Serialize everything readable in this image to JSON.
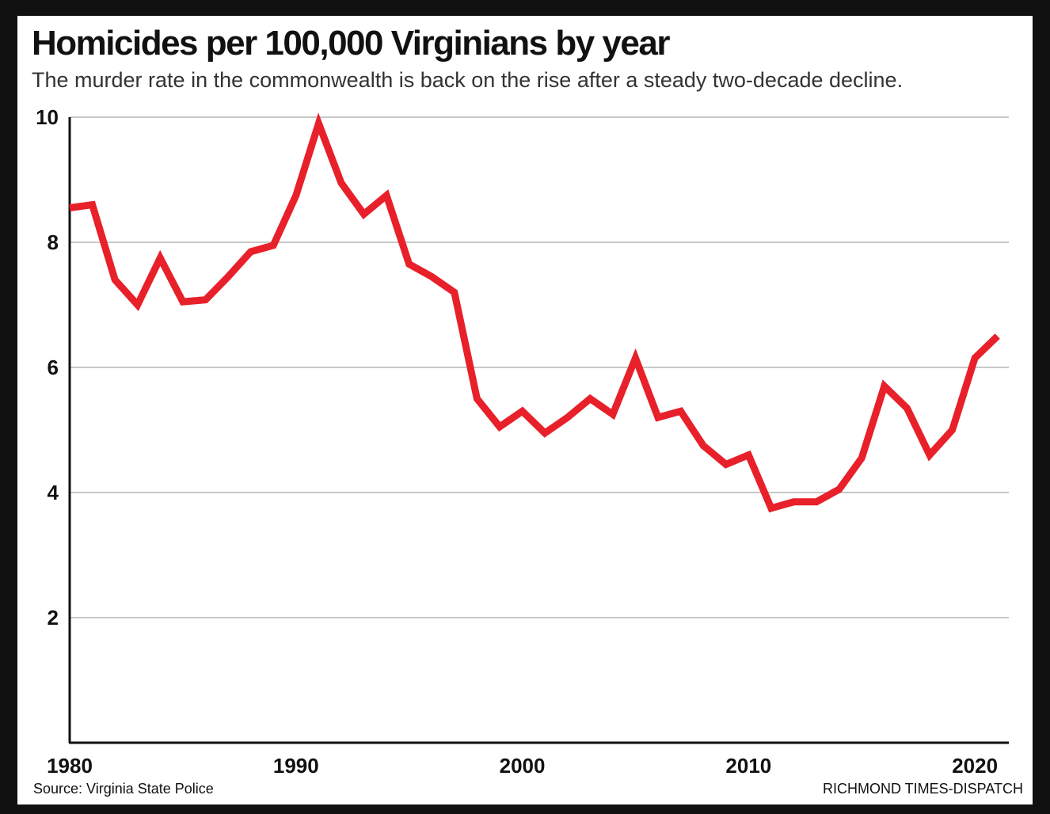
{
  "header": {
    "title": "Homicides per 100,000 Virginians by year",
    "subtitle": "The murder rate in the commonwealth is back on the rise after a steady two-decade decline."
  },
  "footer": {
    "source": "Source: Virginia State Police",
    "credit": "RICHMOND TIMES-DISPATCH"
  },
  "colors": {
    "line": "#e8202a",
    "grid": "#c8c8c8",
    "axis": "#111111"
  },
  "chart_data": {
    "type": "line",
    "title": "Homicides per 100,000 Virginians by year",
    "xlabel": "",
    "ylabel": "",
    "xlim": [
      1980,
      2021.5
    ],
    "ylim": [
      0,
      10
    ],
    "x_ticks": [
      1980,
      1990,
      2000,
      2010,
      2020
    ],
    "y_ticks": [
      2,
      4,
      6,
      8,
      10
    ],
    "grid": true,
    "series": [
      {
        "x": [
          1980,
          1981,
          1982,
          1983,
          1984,
          1985,
          1986,
          1987,
          1988,
          1989,
          1990,
          1991,
          1992,
          1993,
          1994,
          1995,
          1996,
          1997,
          1998,
          1999,
          2000,
          2001,
          2002,
          2003,
          2004,
          2005,
          2006,
          2007,
          2008,
          2009,
          2010,
          2011,
          2012,
          2013,
          2014,
          2015,
          2016,
          2017,
          2018,
          2019,
          2020,
          2021
        ],
        "values": [
          8.55,
          8.6,
          7.4,
          7.0,
          7.75,
          7.05,
          7.08,
          7.45,
          7.85,
          7.95,
          8.75,
          9.9,
          8.95,
          8.45,
          8.75,
          7.65,
          7.45,
          7.2,
          5.5,
          5.05,
          5.3,
          4.95,
          5.2,
          5.5,
          5.25,
          6.15,
          5.2,
          5.3,
          4.75,
          4.45,
          4.6,
          3.75,
          3.85,
          3.85,
          4.05,
          4.55,
          5.7,
          5.35,
          4.6,
          5.0,
          6.15,
          6.5
        ]
      }
    ]
  }
}
